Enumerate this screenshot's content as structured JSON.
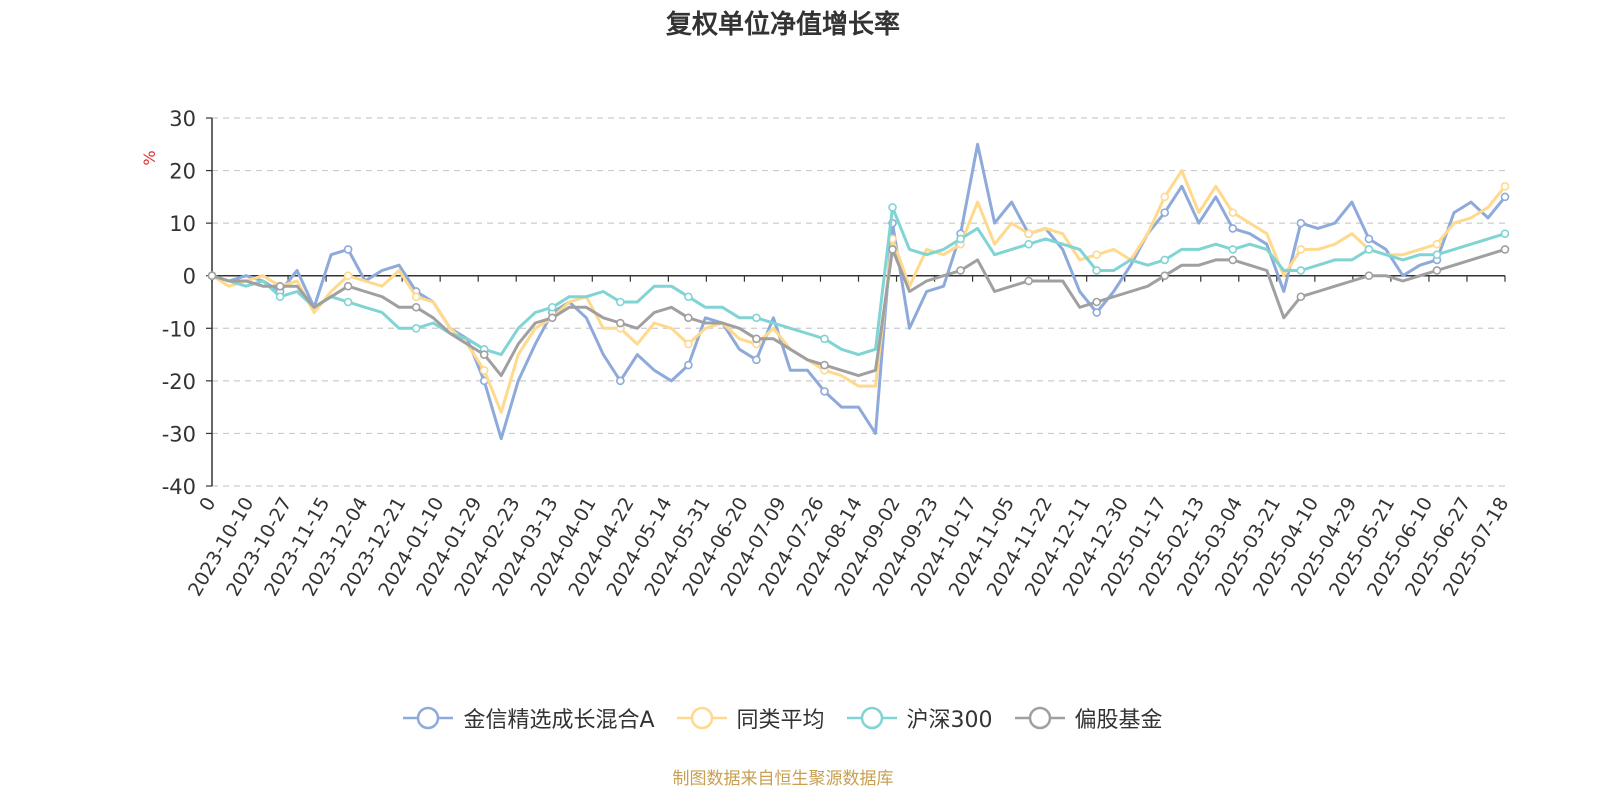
{
  "chart_data": {
    "type": "line",
    "title": "复权单位净值增长率",
    "ylabel": "%",
    "ylim": [
      -40,
      30
    ],
    "yticks": [
      30,
      20,
      10,
      0,
      -10,
      -20,
      -30,
      -40
    ],
    "xlabels": [
      "0",
      "2023-10-10",
      "2023-10-27",
      "2023-11-15",
      "2023-12-04",
      "2023-12-21",
      "2024-01-10",
      "2024-01-29",
      "2024-02-23",
      "2024-03-13",
      "2024-04-01",
      "2024-04-22",
      "2024-05-14",
      "2024-05-31",
      "2024-06-20",
      "2024-07-09",
      "2024-07-26",
      "2024-08-14",
      "2024-09-02",
      "2024-09-23",
      "2024-10-17",
      "2024-11-05",
      "2024-11-22",
      "2024-12-11",
      "2024-12-30",
      "2025-01-17",
      "2025-02-13",
      "2025-03-04",
      "2025-03-21",
      "2025-04-10",
      "2025-04-29",
      "2025-05-21",
      "2025-06-10",
      "2025-06-27",
      "2025-07-18"
    ],
    "grid": true,
    "legend_position": "bottom",
    "series": [
      {
        "name": "金信精选成长混合A",
        "color": "#8eaadb",
        "values": [
          0,
          -1,
          0,
          -1,
          -3,
          1,
          -6,
          4,
          5,
          -1,
          1,
          2,
          -3,
          -5,
          -10,
          -12,
          -20,
          -31,
          -20,
          -13,
          -7,
          -5,
          -8,
          -15,
          -20,
          -15,
          -18,
          -20,
          -17,
          -8,
          -9,
          -14,
          -16,
          -8,
          -18,
          -18,
          -22,
          -25,
          -25,
          -30,
          10,
          -10,
          -3,
          -2,
          8,
          25,
          10,
          14,
          8,
          9,
          5,
          -3,
          -7,
          -3,
          2,
          8,
          12,
          17,
          10,
          15,
          9,
          8,
          6,
          -3,
          10,
          9,
          10,
          14,
          7,
          5,
          0,
          2,
          3,
          12,
          14,
          11,
          15
        ]
      },
      {
        "name": "同类平均",
        "color": "#ffd98c",
        "values": [
          0,
          -2,
          -1,
          0,
          -2,
          -1,
          -7,
          -3,
          0,
          -1,
          -2,
          1,
          -4,
          -5,
          -10,
          -13,
          -18,
          -26,
          -15,
          -10,
          -8,
          -5,
          -4,
          -10,
          -10,
          -13,
          -9,
          -10,
          -13,
          -10,
          -9,
          -12,
          -13,
          -10,
          -14,
          -16,
          -18,
          -19,
          -21,
          -21,
          7,
          -2,
          5,
          4,
          6,
          14,
          6,
          10,
          8,
          9,
          8,
          3,
          4,
          5,
          3,
          8,
          15,
          20,
          12,
          17,
          12,
          10,
          8,
          0,
          5,
          5,
          6,
          8,
          5,
          4,
          4,
          5,
          6,
          10,
          11,
          13,
          17
        ]
      },
      {
        "name": "沪深300",
        "color": "#80d4d4",
        "values": [
          0,
          -1,
          -2,
          -1,
          -4,
          -3,
          -6,
          -4,
          -5,
          -6,
          -7,
          -10,
          -10,
          -9,
          -11,
          -12,
          -14,
          -15,
          -10,
          -7,
          -6,
          -4,
          -4,
          -3,
          -5,
          -5,
          -2,
          -2,
          -4,
          -6,
          -6,
          -8,
          -8,
          -9,
          -10,
          -11,
          -12,
          -14,
          -15,
          -14,
          13,
          5,
          4,
          5,
          7,
          9,
          4,
          5,
          6,
          7,
          6,
          5,
          1,
          1,
          3,
          2,
          3,
          5,
          5,
          6,
          5,
          6,
          5,
          1,
          1,
          2,
          3,
          3,
          5,
          4,
          3,
          4,
          4,
          5,
          6,
          7,
          8
        ]
      },
      {
        "name": "偏股基金",
        "color": "#a0a0a0",
        "values": [
          0,
          -1,
          -1,
          -2,
          -2,
          -2,
          -6,
          -4,
          -2,
          -3,
          -4,
          -6,
          -6,
          -8,
          -11,
          -13,
          -15,
          -19,
          -13,
          -9,
          -8,
          -6,
          -6,
          -8,
          -9,
          -10,
          -7,
          -6,
          -8,
          -9,
          -9,
          -10,
          -12,
          -12,
          -14,
          -16,
          -17,
          -18,
          -19,
          -18,
          5,
          -3,
          -1,
          0,
          1,
          3,
          -3,
          -2,
          -1,
          -1,
          -1,
          -6,
          -5,
          -4,
          -3,
          -2,
          0,
          2,
          2,
          3,
          3,
          2,
          1,
          -8,
          -4,
          -3,
          -2,
          -1,
          0,
          0,
          -1,
          0,
          1,
          2,
          3,
          4,
          5
        ]
      }
    ]
  },
  "source_note": "制图数据来自恒生聚源数据库"
}
